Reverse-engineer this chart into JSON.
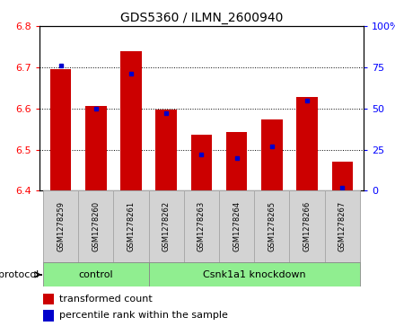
{
  "title": "GDS5360 / ILMN_2600940",
  "samples": [
    "GSM1278259",
    "GSM1278260",
    "GSM1278261",
    "GSM1278262",
    "GSM1278263",
    "GSM1278264",
    "GSM1278265",
    "GSM1278266",
    "GSM1278267"
  ],
  "transformed_count": [
    6.695,
    6.605,
    6.74,
    6.598,
    6.535,
    6.542,
    6.573,
    6.628,
    6.47
  ],
  "percentile_rank": [
    76,
    50,
    71,
    47,
    22,
    20,
    27,
    55,
    2
  ],
  "y_min": 6.4,
  "y_max": 6.8,
  "y_ticks": [
    6.4,
    6.5,
    6.6,
    6.7,
    6.8
  ],
  "right_y_ticks": [
    0,
    25,
    50,
    75,
    100
  ],
  "bar_color": "#cc0000",
  "dot_color": "#0000cc",
  "n_control": 3,
  "control_label": "control",
  "knockdown_label": "Csnk1a1 knockdown",
  "protocol_label": "protocol",
  "legend_bar_label": "transformed count",
  "legend_dot_label": "percentile rank within the sample",
  "group_bg_color": "#90ee90",
  "tick_bg_color": "#d3d3d3",
  "bar_width": 0.6
}
